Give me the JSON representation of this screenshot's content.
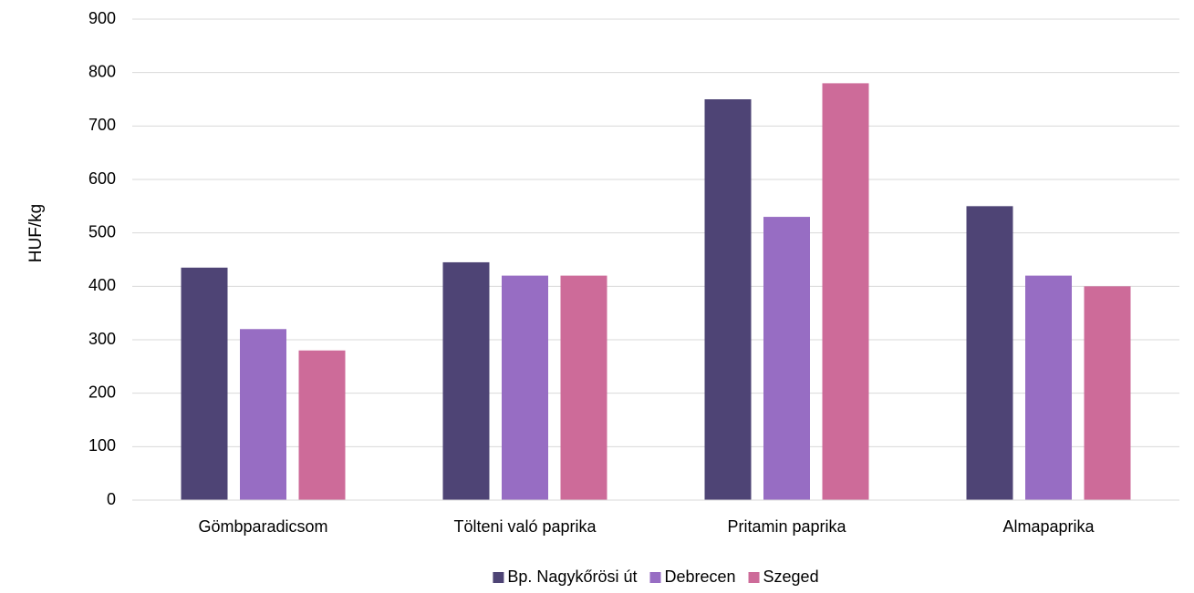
{
  "chart_data": {
    "type": "bar",
    "title": "",
    "xlabel": "",
    "ylabel": "HUF/kg",
    "ylim": [
      0,
      900
    ],
    "y_ticks": [
      0,
      100,
      200,
      300,
      400,
      500,
      600,
      700,
      800,
      900
    ],
    "grid": true,
    "legend_position": "bottom",
    "categories": [
      "Gömbparadicsom",
      "Tölteni való paprika",
      "Pritamin paprika",
      "Almapaprika"
    ],
    "series": [
      {
        "name": "Bp. Nagykőrösi út",
        "color": "#4e4475",
        "values": [
          435,
          445,
          750,
          550
        ]
      },
      {
        "name": "Debrecen",
        "color": "#976dc3",
        "values": [
          320,
          420,
          530,
          420
        ]
      },
      {
        "name": "Szeged",
        "color": "#cd6b99",
        "values": [
          280,
          420,
          780,
          400
        ]
      }
    ]
  }
}
